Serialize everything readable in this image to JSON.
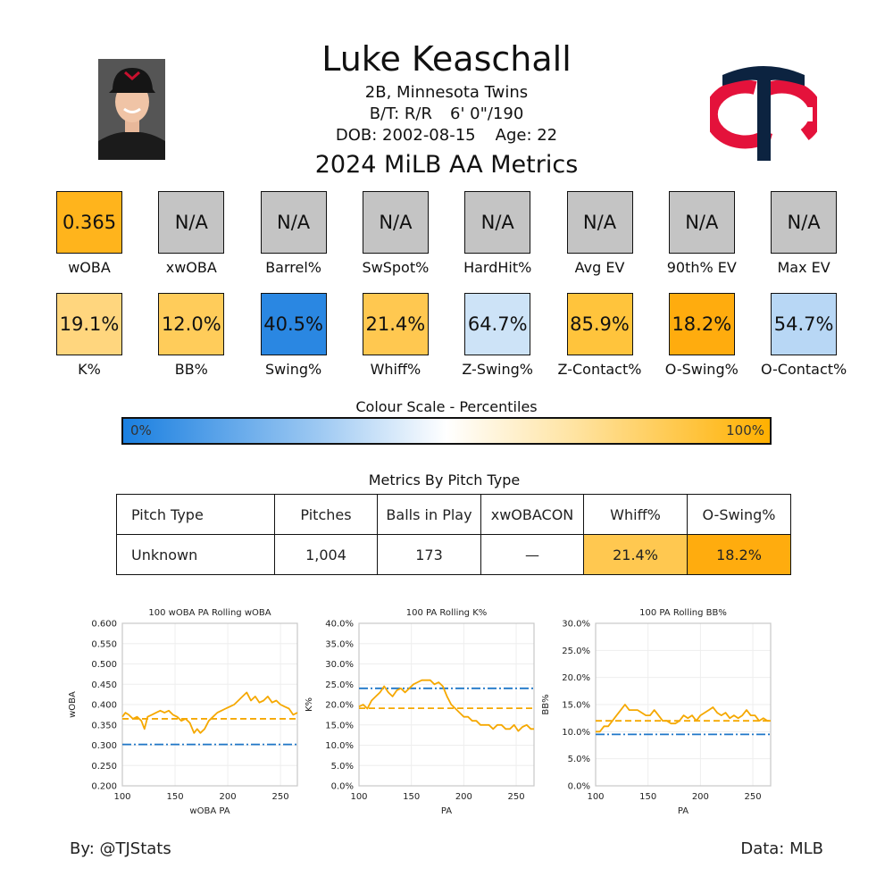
{
  "player": {
    "name": "Luke Keaschall",
    "position_team": "2B, Minnesota Twins",
    "bt": "B/T: R/R",
    "height_weight": "6' 0\"/190",
    "dob": "DOB: 2002-08-15",
    "age": "Age: 22"
  },
  "section_title": "2024 MiLB AA Metrics",
  "colors": {
    "gray": "#c4c4c4",
    "twins_navy": "#0c2340",
    "twins_red": "#e4123b",
    "line_orange": "#f5a800",
    "line_blue": "#1f77c8"
  },
  "icons": {
    "headshot": "player-headshot",
    "logo": "twins-tc-logo"
  },
  "metrics_row1": [
    {
      "label": "wOBA",
      "value": "0.365",
      "color": "#ffb41c"
    },
    {
      "label": "xwOBA",
      "value": "N/A",
      "color": "#c4c4c4"
    },
    {
      "label": "Barrel%",
      "value": "N/A",
      "color": "#c4c4c4"
    },
    {
      "label": "SwSpot%",
      "value": "N/A",
      "color": "#c4c4c4"
    },
    {
      "label": "HardHit%",
      "value": "N/A",
      "color": "#c4c4c4"
    },
    {
      "label": "Avg EV",
      "value": "N/A",
      "color": "#c4c4c4"
    },
    {
      "label": "90th% EV",
      "value": "N/A",
      "color": "#c4c4c4"
    },
    {
      "label": "Max EV",
      "value": "N/A",
      "color": "#c4c4c4"
    }
  ],
  "metrics_row2": [
    {
      "label": "K%",
      "value": "19.1%",
      "color": "#ffd67e"
    },
    {
      "label": "BB%",
      "value": "12.0%",
      "color": "#ffcc5a"
    },
    {
      "label": "Swing%",
      "value": "40.5%",
      "color": "#2a87e2"
    },
    {
      "label": "Whiff%",
      "value": "21.4%",
      "color": "#ffc850"
    },
    {
      "label": "Z-Swing%",
      "value": "64.7%",
      "color": "#cde3f7"
    },
    {
      "label": "Z-Contact%",
      "value": "85.9%",
      "color": "#ffc43c"
    },
    {
      "label": "O-Swing%",
      "value": "18.2%",
      "color": "#ffac0e"
    },
    {
      "label": "O-Contact%",
      "value": "54.7%",
      "color": "#b8d7f5"
    }
  ],
  "colour_scale": {
    "title": "Colour Scale - Percentiles",
    "min_label": "0%",
    "max_label": "100%"
  },
  "pitch_table": {
    "title": "Metrics By Pitch Type",
    "headers": [
      "Pitch Type",
      "Pitches",
      "Balls in Play",
      "xwOBACON",
      "Whiff%",
      "O-Swing%"
    ],
    "rows": [
      {
        "cells": [
          "Unknown",
          "1,004",
          "173",
          "—",
          "21.4%",
          "18.2%"
        ],
        "colors": [
          "#ffffff",
          "#ffffff",
          "#ffffff",
          "#ffffff",
          "#ffc850",
          "#ffac0e"
        ]
      }
    ]
  },
  "chart_data": [
    {
      "type": "line",
      "title": "100 wOBA PA Rolling wOBA",
      "xlabel": "wOBA PA",
      "ylabel": "wOBA",
      "xlim": [
        100,
        266
      ],
      "ylim": [
        0.2,
        0.6
      ],
      "xticks": [
        100,
        150,
        200,
        250
      ],
      "yticks": [
        0.2,
        0.25,
        0.3,
        0.35,
        0.4,
        0.45,
        0.5,
        0.55,
        0.6
      ],
      "ytick_labels": [
        "0.200",
        "0.250",
        "0.300",
        "0.350",
        "0.400",
        "0.450",
        "0.500",
        "0.550",
        "0.600"
      ],
      "hlines": [
        {
          "y": 0.365,
          "style": "dashed",
          "color": "#f5a800"
        },
        {
          "y": 0.302,
          "style": "dashdot",
          "color": "#1f77c8"
        }
      ],
      "series": [
        {
          "x": [
            100,
            103,
            106,
            110,
            114,
            118,
            121,
            124,
            128,
            132,
            136,
            140,
            144,
            148,
            152,
            156,
            160,
            164,
            168,
            171,
            174,
            178,
            182,
            186,
            190,
            194,
            198,
            202,
            206,
            210,
            214,
            218,
            222,
            226,
            230,
            234,
            238,
            242,
            246,
            250,
            254,
            258,
            262,
            266
          ],
          "y": [
            0.37,
            0.38,
            0.375,
            0.365,
            0.37,
            0.36,
            0.34,
            0.37,
            0.375,
            0.38,
            0.385,
            0.38,
            0.385,
            0.375,
            0.37,
            0.36,
            0.365,
            0.355,
            0.33,
            0.34,
            0.33,
            0.34,
            0.36,
            0.37,
            0.38,
            0.385,
            0.39,
            0.395,
            0.4,
            0.41,
            0.42,
            0.43,
            0.41,
            0.42,
            0.405,
            0.41,
            0.42,
            0.405,
            0.41,
            0.4,
            0.395,
            0.39,
            0.375,
            0.38
          ],
          "color": "#f5a800"
        }
      ]
    },
    {
      "type": "line",
      "title": "100 PA Rolling K%",
      "xlabel": "PA",
      "ylabel": "K%",
      "xlim": [
        100,
        267
      ],
      "ylim": [
        0,
        40
      ],
      "xticks": [
        100,
        150,
        200,
        250
      ],
      "yticks": [
        0,
        5,
        10,
        15,
        20,
        25,
        30,
        35,
        40
      ],
      "ytick_labels": [
        "0.0%",
        "5.0%",
        "10.0%",
        "15.0%",
        "20.0%",
        "25.0%",
        "30.0%",
        "35.0%",
        "40.0%"
      ],
      "hlines": [
        {
          "y": 19.1,
          "style": "dashed",
          "color": "#f5a800"
        },
        {
          "y": 24.0,
          "style": "dashdot",
          "color": "#1f77c8"
        }
      ],
      "series": [
        {
          "x": [
            100,
            104,
            108,
            112,
            116,
            120,
            124,
            128,
            132,
            136,
            140,
            144,
            148,
            152,
            156,
            160,
            164,
            168,
            172,
            176,
            180,
            184,
            188,
            192,
            196,
            200,
            204,
            208,
            212,
            216,
            220,
            224,
            228,
            232,
            236,
            240,
            244,
            248,
            252,
            256,
            260,
            264,
            267
          ],
          "y": [
            19.5,
            20,
            19,
            21,
            22,
            23,
            24.5,
            23,
            22,
            23.5,
            24,
            23,
            24,
            25,
            25.5,
            26,
            26,
            26,
            25,
            25.5,
            24.5,
            22,
            20,
            19,
            18,
            17,
            17,
            16,
            16,
            15,
            15,
            15,
            14,
            15,
            15,
            14,
            14,
            15,
            13.5,
            14.5,
            15,
            14,
            14
          ],
          "color": "#f5a800"
        }
      ]
    },
    {
      "type": "line",
      "title": "100 PA Rolling BB%",
      "xlabel": "PA",
      "ylabel": "BB%",
      "xlim": [
        100,
        267
      ],
      "ylim": [
        0,
        30
      ],
      "xticks": [
        100,
        150,
        200,
        250
      ],
      "yticks": [
        0,
        5,
        10,
        15,
        20,
        25,
        30
      ],
      "ytick_labels": [
        "0.0%",
        "5.0%",
        "10.0%",
        "15.0%",
        "20.0%",
        "25.0%",
        "30.0%"
      ],
      "hlines": [
        {
          "y": 12.0,
          "style": "dashed",
          "color": "#f5a800"
        },
        {
          "y": 9.5,
          "style": "dashdot",
          "color": "#1f77c8"
        }
      ],
      "series": [
        {
          "x": [
            100,
            104,
            108,
            112,
            116,
            120,
            124,
            128,
            132,
            136,
            140,
            144,
            148,
            152,
            156,
            160,
            164,
            168,
            172,
            176,
            180,
            184,
            188,
            192,
            196,
            200,
            204,
            208,
            212,
            216,
            220,
            224,
            228,
            232,
            236,
            240,
            244,
            248,
            252,
            256,
            260,
            264,
            267
          ],
          "y": [
            10,
            10,
            11,
            11,
            12,
            13,
            14,
            15,
            14,
            14,
            14,
            13.5,
            13,
            13,
            14,
            13,
            12,
            12,
            11.5,
            11.5,
            12,
            13,
            12.5,
            13,
            12,
            13,
            13.5,
            14,
            14.5,
            13.5,
            13,
            13.5,
            12.5,
            13,
            12.5,
            13,
            14,
            13,
            13,
            12,
            12.5,
            12,
            12
          ],
          "color": "#f5a800"
        }
      ]
    }
  ],
  "footer": {
    "left": "By: @TJStats",
    "right": "Data: MLB"
  }
}
